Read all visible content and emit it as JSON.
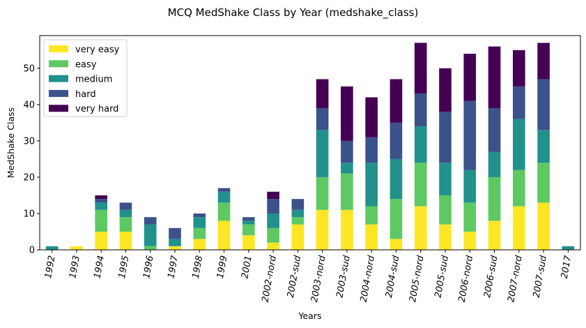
{
  "chart_data": {
    "type": "bar",
    "stacked": true,
    "title": "MCQ MedShake Class by Year (medshake_class)",
    "xlabel": "Years",
    "ylabel": "MedShake Class",
    "ylim": [
      0,
      59
    ],
    "yticks": [
      0,
      10,
      20,
      30,
      40,
      50
    ],
    "legend_position": "top-left",
    "categories": [
      "1992",
      "1993",
      "1994",
      "1995",
      "1996",
      "1997",
      "1998",
      "1999",
      "2001",
      "2002-nord",
      "2002-sud",
      "2003-nord",
      "2003-sud",
      "2004-nord",
      "2004-sud",
      "2005-nord",
      "2005-sud",
      "2006-nord",
      "2006-sud",
      "2007-nord",
      "2007-sud",
      "2017"
    ],
    "series": [
      {
        "name": "very easy",
        "color": "#fde725",
        "values": [
          0,
          1,
          5,
          5,
          0,
          1,
          3,
          8,
          4,
          2,
          7,
          11,
          11,
          7,
          3,
          12,
          7,
          5,
          8,
          12,
          13,
          0
        ]
      },
      {
        "name": "easy",
        "color": "#5ec962",
        "values": [
          0,
          0,
          6,
          4,
          1,
          0,
          3,
          5,
          3,
          4,
          2,
          9,
          10,
          5,
          11,
          12,
          8,
          8,
          12,
          10,
          11,
          0
        ]
      },
      {
        "name": "medium",
        "color": "#21918c",
        "values": [
          1,
          0,
          2,
          2,
          6,
          2,
          3,
          3,
          1,
          4,
          2,
          13,
          3,
          12,
          11,
          10,
          9,
          9,
          7,
          14,
          9,
          1
        ]
      },
      {
        "name": "hard",
        "color": "#3b528b",
        "values": [
          0,
          0,
          1,
          2,
          2,
          3,
          1,
          1,
          1,
          4,
          3,
          6,
          6,
          7,
          10,
          9,
          14,
          19,
          12,
          9,
          14,
          0
        ]
      },
      {
        "name": "very hard",
        "color": "#440154",
        "values": [
          0,
          0,
          1,
          0,
          0,
          0,
          0,
          0,
          0,
          2,
          0,
          8,
          15,
          11,
          12,
          14,
          12,
          13,
          17,
          10,
          10,
          0
        ]
      }
    ]
  }
}
